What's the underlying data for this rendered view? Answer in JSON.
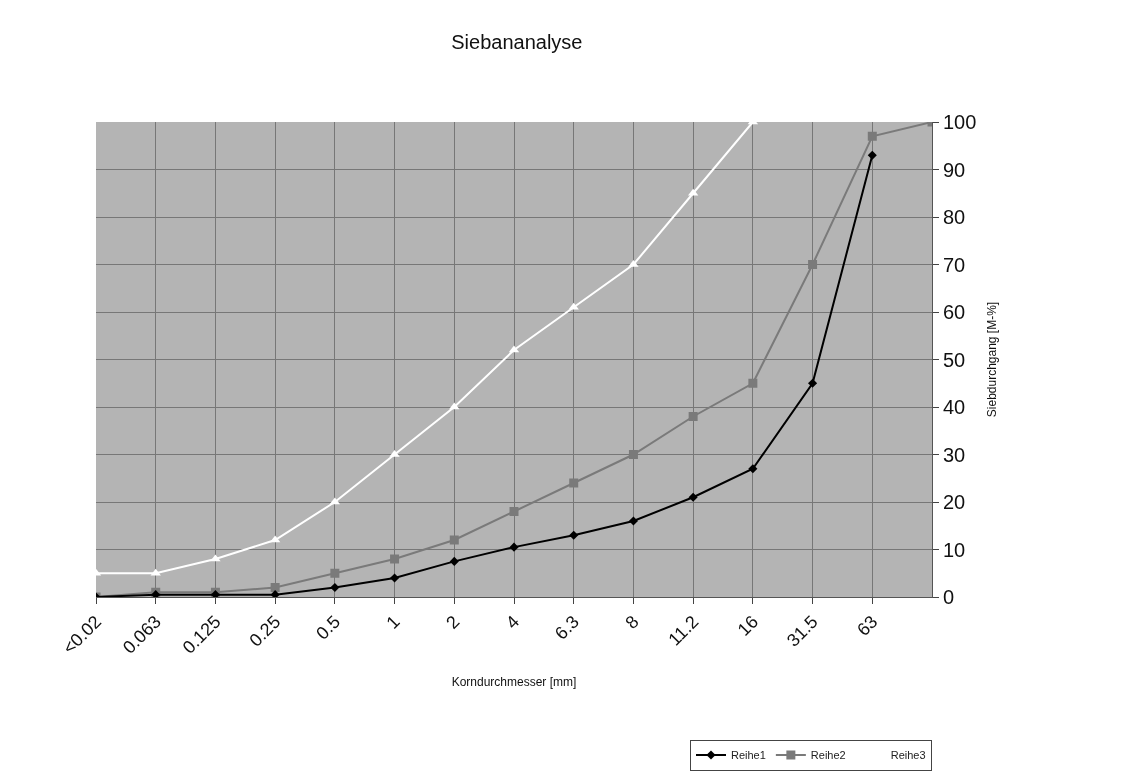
{
  "chart_data": {
    "type": "line",
    "title": "Siebananalyse",
    "xlabel": "Korndurchmesser [mm]",
    "ylabel": "Siebdurchgang [M-%]",
    "categories": [
      "<0.02",
      "0.063",
      "0.125",
      "0.25",
      "0.5",
      "1",
      "2",
      "4",
      "6.3",
      "8",
      "11.2",
      "16",
      "31.5",
      "63",
      null
    ],
    "ylim": [
      0,
      100
    ],
    "yticks": [
      0,
      10,
      20,
      30,
      40,
      50,
      60,
      70,
      80,
      90,
      100
    ],
    "grid": true,
    "legend": "bottom right",
    "series": [
      {
        "name": "Reihe1",
        "color": "#000000",
        "marker": "diamond",
        "values": [
          0,
          0.5,
          0.5,
          0.5,
          2,
          4,
          7.5,
          10.5,
          13,
          16,
          21,
          27,
          45,
          93,
          null
        ]
      },
      {
        "name": "Reihe2",
        "color": "#7a7a7a",
        "marker": "square",
        "values": [
          0,
          1,
          1,
          2,
          5,
          8,
          12,
          18,
          24,
          30,
          38,
          45,
          70,
          97,
          100
        ]
      },
      {
        "name": "Reihe3",
        "color": "#ffffff",
        "marker": "triangle",
        "values": [
          5,
          5,
          8,
          12,
          20,
          30,
          40,
          52,
          61,
          70,
          85,
          100,
          null,
          null,
          null
        ]
      }
    ]
  }
}
